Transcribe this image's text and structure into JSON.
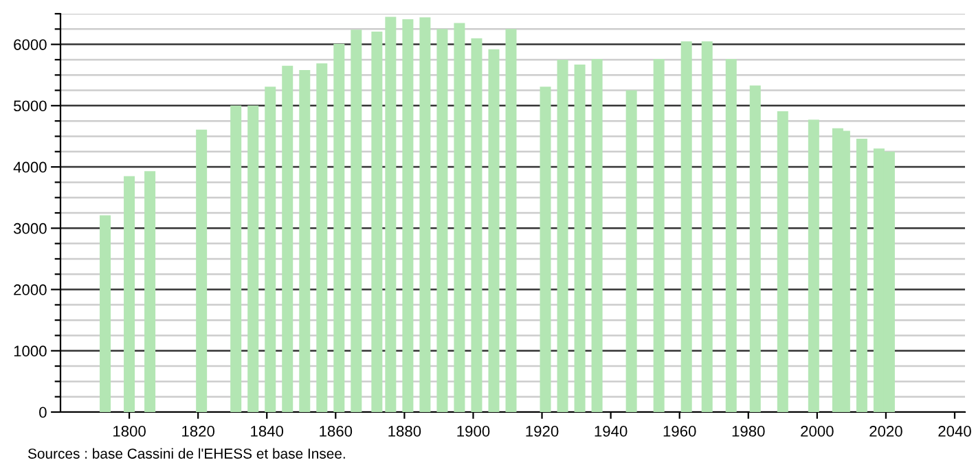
{
  "chart_data": {
    "type": "bar",
    "x": [
      1793,
      1800,
      1806,
      1821,
      1831,
      1836,
      1841,
      1846,
      1851,
      1856,
      1861,
      1866,
      1872,
      1876,
      1881,
      1886,
      1891,
      1896,
      1901,
      1906,
      1911,
      1921,
      1926,
      1931,
      1936,
      1946,
      1954,
      1962,
      1968,
      1975,
      1982,
      1990,
      1999,
      2006,
      2008,
      2013,
      2018,
      2021
    ],
    "values": [
      3210,
      3850,
      3930,
      4610,
      5000,
      5000,
      5310,
      5650,
      5580,
      5690,
      6010,
      6240,
      6210,
      6450,
      6410,
      6440,
      6250,
      6350,
      6100,
      5920,
      6250,
      5310,
      5750,
      5670,
      5760,
      5250,
      5760,
      6050,
      6050,
      5760,
      5330,
      4910,
      4770,
      4630,
      4590,
      4460,
      4300,
      4250
    ],
    "color": "#b3e6b3",
    "xlim": [
      1780,
      2043
    ],
    "xticks": [
      1800,
      1820,
      1840,
      1860,
      1880,
      1900,
      1920,
      1940,
      1960,
      1980,
      2000,
      2020,
      2040
    ],
    "ylim": [
      0,
      6500
    ],
    "yticks": [
      0,
      {
        "value": 250,
        "label": null
      },
      {
        "value": 500,
        "label": null
      },
      {
        "value": 750,
        "label": null
      },
      1000,
      {
        "value": 1250,
        "label": null
      },
      {
        "value": 1500,
        "label": null
      },
      {
        "value": 1750,
        "label": null
      },
      2000,
      {
        "value": 2250,
        "label": null
      },
      {
        "value": 2500,
        "label": null
      },
      {
        "value": 2750,
        "label": null
      },
      3000,
      {
        "value": 3250,
        "label": null
      },
      {
        "value": 3500,
        "label": null
      },
      {
        "value": 3750,
        "label": null
      },
      4000,
      {
        "value": 4250,
        "label": null
      },
      {
        "value": 4500,
        "label": null
      },
      {
        "value": 4750,
        "label": null
      },
      5000,
      {
        "value": 5250,
        "label": null
      },
      {
        "value": 5500,
        "label": null
      },
      {
        "value": 5750,
        "label": null
      },
      6000,
      {
        "value": 6250,
        "label": null
      },
      {
        "value": 6500,
        "label": null
      }
    ],
    "grid": "y",
    "annotations": [
      "Sources : base Cassini de l'EHESS et base Insee."
    ]
  }
}
